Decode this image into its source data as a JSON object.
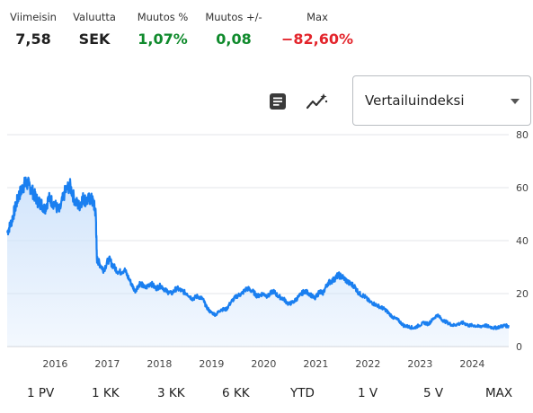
{
  "stats": [
    {
      "label": "Viimeisin",
      "value": "7,58",
      "color": "#1f1f1f"
    },
    {
      "label": "Valuutta",
      "value": "SEK",
      "color": "#1f1f1f"
    },
    {
      "label": "Muutos %",
      "value": "1,07%",
      "color": "#0f8a2c"
    },
    {
      "label": "Muutos +/-",
      "value": "0,08",
      "color": "#0f8a2c"
    },
    {
      "label": "Max",
      "value": "−82,60%",
      "color": "#e3242b"
    }
  ],
  "toolbar": {
    "notes_icon": "document-lines-icon",
    "indicators_icon": "line-sparkle-icon"
  },
  "comparison_select": {
    "value": "Vertailuindeksi"
  },
  "ranges": [
    "1 PV",
    "1 KK",
    "3 KK",
    "6 KK",
    "YTD",
    "1 V",
    "5 V",
    "MAX"
  ],
  "chart_data": {
    "type": "area",
    "title": "",
    "xlabel": "",
    "ylabel": "",
    "ylim": [
      0,
      80
    ],
    "xlim": [
      2015.0,
      2024.62
    ],
    "y_ticks": [
      0,
      20,
      40,
      60,
      80
    ],
    "x_ticks": [
      {
        "value": 2015.92,
        "label": "2016"
      },
      {
        "value": 2016.92,
        "label": "2017"
      },
      {
        "value": 2017.92,
        "label": "2018"
      },
      {
        "value": 2018.92,
        "label": "2019"
      },
      {
        "value": 2019.92,
        "label": "2020"
      },
      {
        "value": 2020.92,
        "label": "2021"
      },
      {
        "value": 2021.92,
        "label": "2022"
      },
      {
        "value": 2022.92,
        "label": "2023"
      },
      {
        "value": 2023.92,
        "label": "2024"
      }
    ],
    "grid": true,
    "line_color": "#1a7ff0",
    "fill_color": "#cfe3fb",
    "series": [
      {
        "x": [
          2015.0,
          2015.08,
          2015.15,
          2015.22,
          2015.3,
          2015.35,
          2015.42,
          2015.5,
          2015.58,
          2015.65,
          2015.72,
          2015.8,
          2015.9,
          2016.0,
          2016.1,
          2016.2,
          2016.3,
          2016.38,
          2016.45,
          2016.52,
          2016.6,
          2016.66,
          2016.7,
          2016.72,
          2016.78,
          2016.85,
          2016.95,
          2017.05,
          2017.15,
          2017.25,
          2017.35,
          2017.45,
          2017.55,
          2017.65,
          2017.75,
          2017.85,
          2017.95,
          2018.05,
          2018.15,
          2018.25,
          2018.35,
          2018.45,
          2018.55,
          2018.65,
          2018.75,
          2018.82,
          2018.9,
          2019.0,
          2019.1,
          2019.2,
          2019.3,
          2019.4,
          2019.5,
          2019.6,
          2019.7,
          2019.8,
          2019.9,
          2020.0,
          2020.1,
          2020.2,
          2020.3,
          2020.4,
          2020.5,
          2020.6,
          2020.7,
          2020.8,
          2020.9,
          2021.0,
          2021.05,
          2021.15,
          2021.25,
          2021.35,
          2021.45,
          2021.55,
          2021.65,
          2021.75,
          2021.85,
          2021.95,
          2022.05,
          2022.15,
          2022.25,
          2022.3,
          2022.4,
          2022.5,
          2022.6,
          2022.7,
          2022.8,
          2022.9,
          2023.0,
          2023.08,
          2023.15,
          2023.25,
          2023.35,
          2023.45,
          2023.55,
          2023.65,
          2023.75,
          2023.85,
          2023.95,
          2024.05,
          2024.15,
          2024.25,
          2024.35,
          2024.45,
          2024.55,
          2024.62
        ],
        "y": [
          43,
          47,
          52,
          57,
          60,
          62,
          61,
          58,
          55,
          54,
          52,
          56,
          54,
          51,
          58,
          61,
          55,
          53,
          56,
          55,
          56,
          54,
          50,
          33,
          31,
          29,
          33,
          30,
          28,
          29,
          25,
          21,
          24,
          22,
          24,
          22,
          23,
          21,
          20,
          22,
          21,
          20,
          18,
          19,
          18,
          15,
          13,
          12,
          14,
          14,
          17,
          19,
          20,
          22,
          21,
          19,
          20,
          19,
          21,
          19,
          18,
          16,
          17,
          19,
          21,
          20,
          18,
          21,
          20,
          24,
          25,
          27,
          26,
          24,
          23,
          20,
          19,
          17,
          16,
          15,
          14,
          13,
          11,
          10,
          8,
          7.5,
          7,
          8,
          9,
          8.5,
          10,
          12,
          10,
          9,
          8,
          8.5,
          9,
          8,
          8,
          7.5,
          8,
          7.5,
          7,
          7.5,
          8,
          7.58
        ]
      }
    ]
  }
}
